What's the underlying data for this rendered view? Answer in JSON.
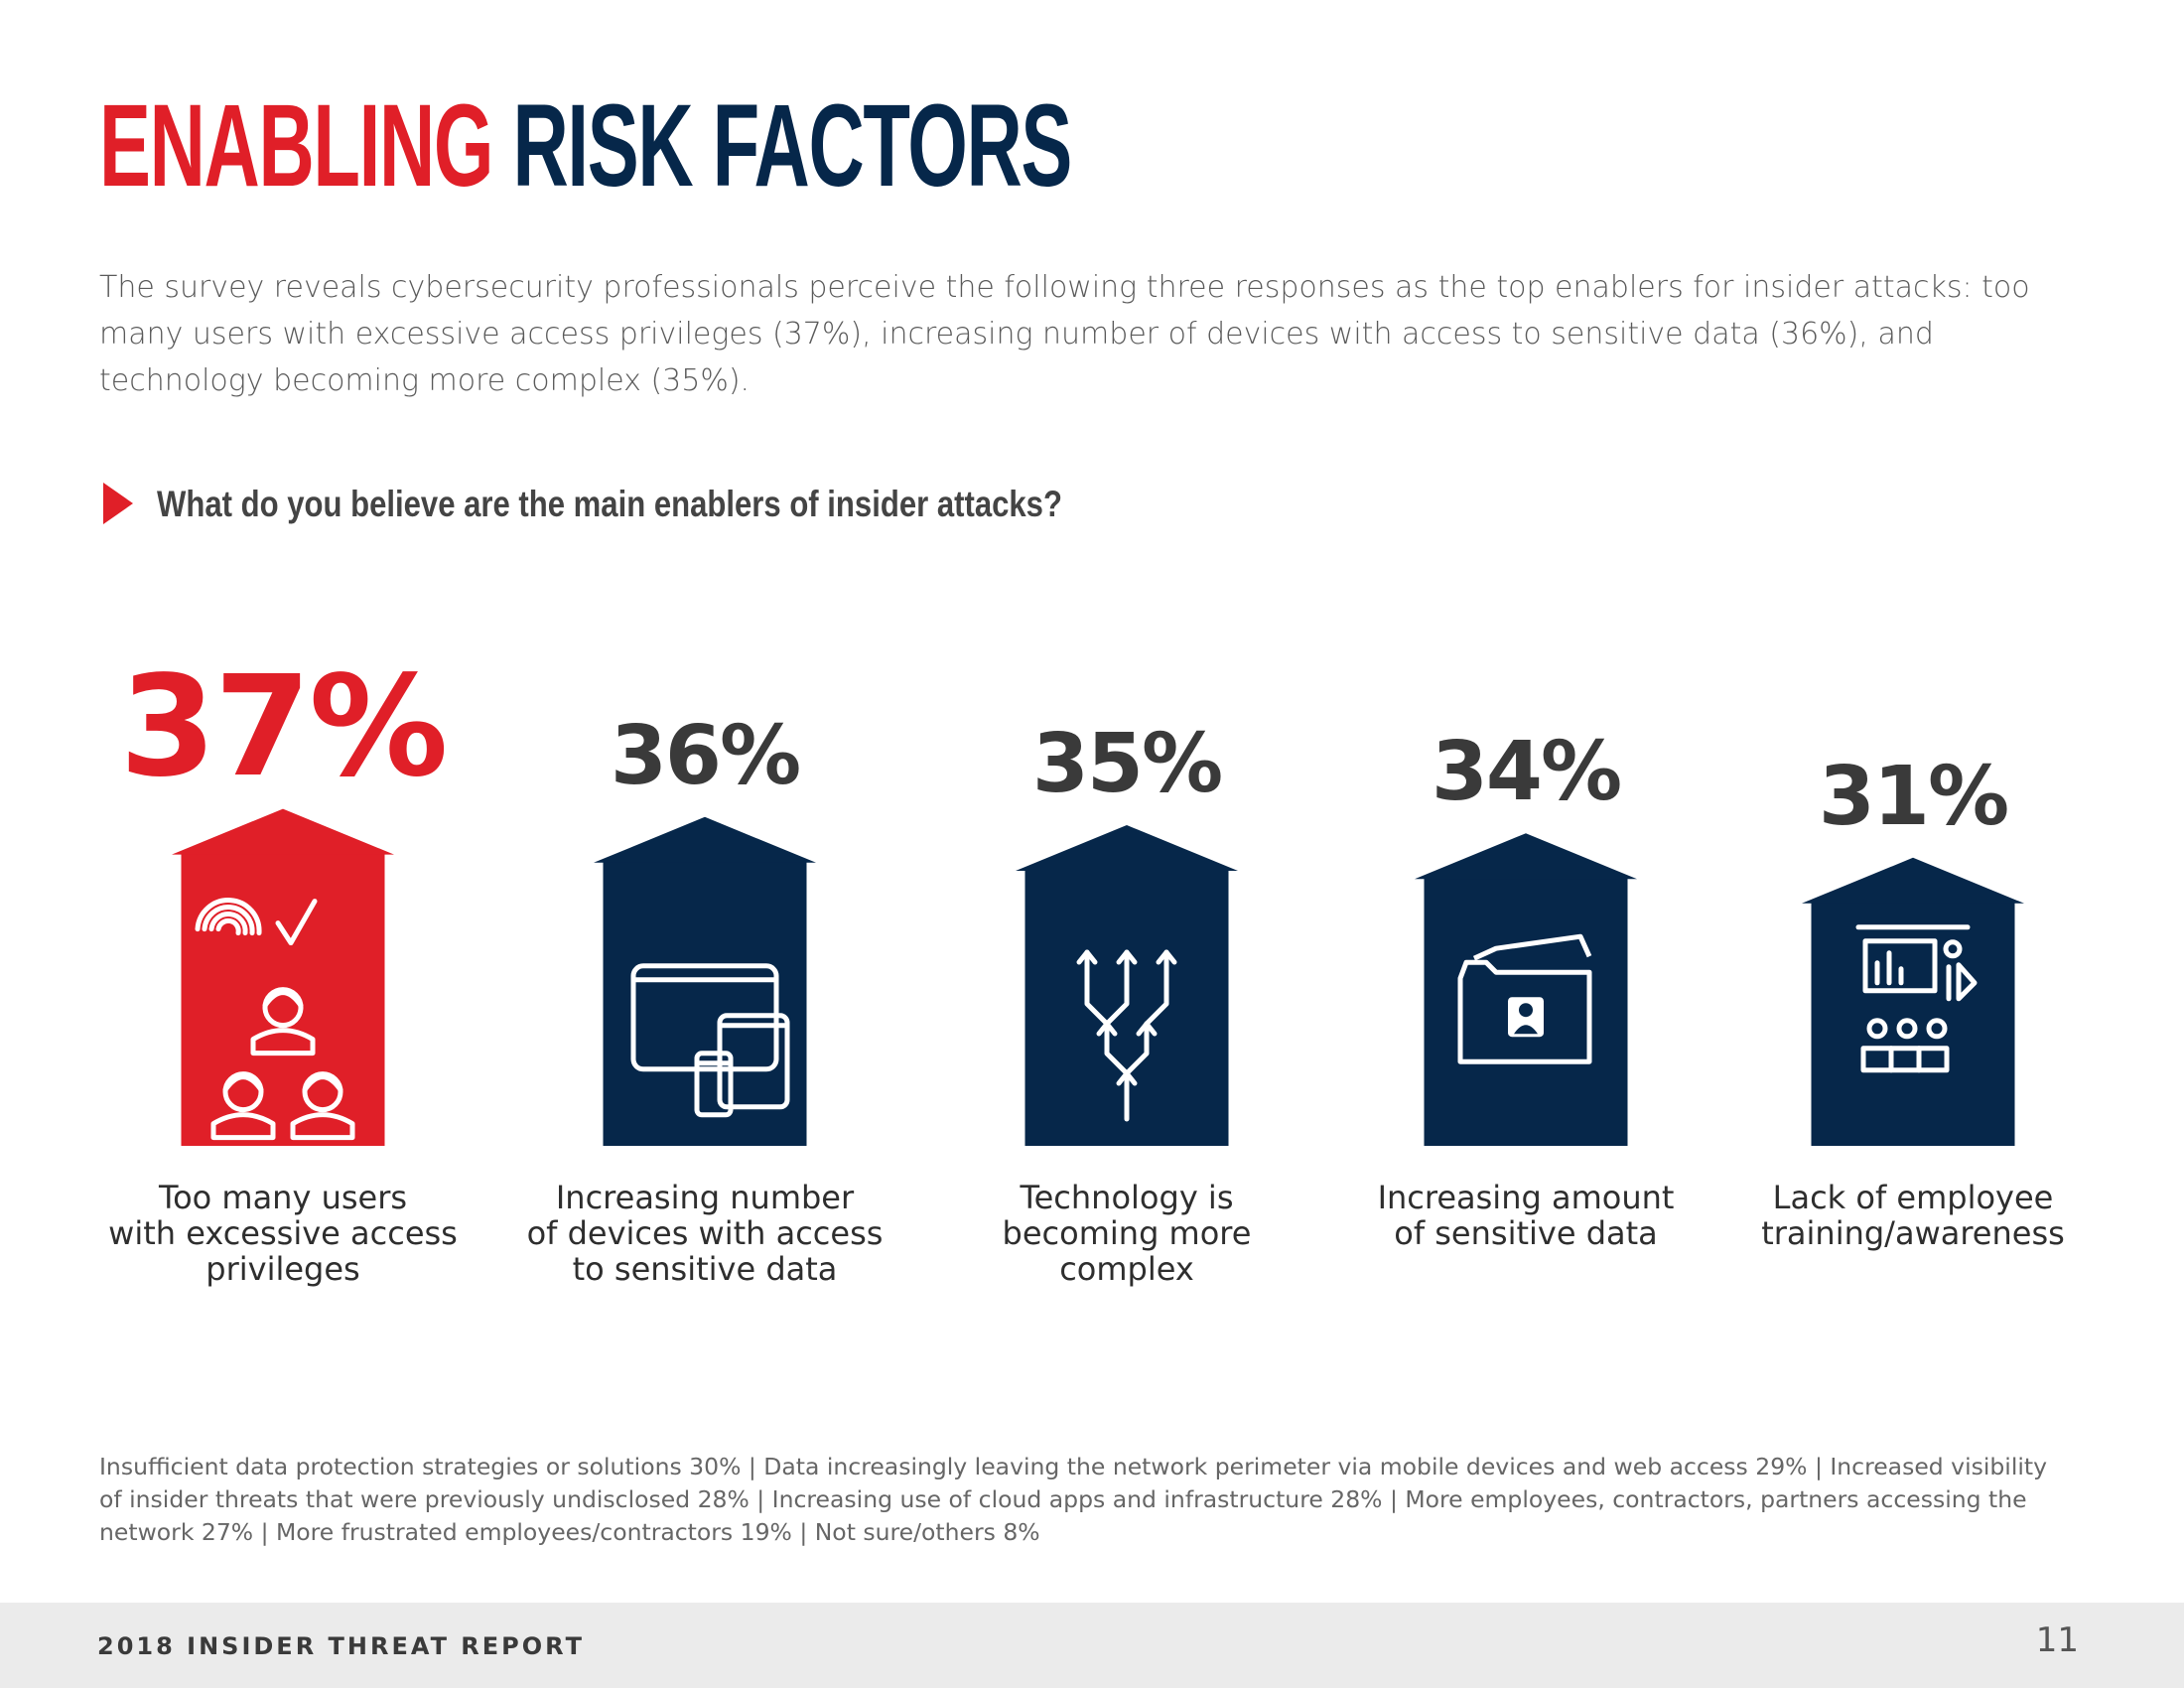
{
  "page": {
    "title_part1": "ENABLING",
    "title_part2": "RISK FACTORS",
    "intro": "The survey reveals cybersecurity professionals perceive the following three responses as the top enablers for insider attacks: too many users with excessive access privileges (37%), increasing number of devices with access to sensitive data (36%), and technology becoming more complex (35%).",
    "question": "What do you believe are the main enablers of insider attacks?",
    "other_responses": "Insufficient data protection strategies or solutions 30%  |  Data increasingly leaving the network perimeter via mobile devices and web access 29%  |  Increased visibility of insider threats that were previously undisclosed 28%  |  Increasing use of cloud apps and infrastructure 28%  |  More employees, contractors, partners accessing the network 27%  |  More frustrated employees/contractors 19%  |  Not sure/others 8%",
    "footer_report": "2018 INSIDER THREAT REPORT",
    "footer_page": "11"
  },
  "colors": {
    "highlight": "#e01f28",
    "bar": "#06274a",
    "text_dark": "#3a3a3a",
    "footer_bg": "#ebebeb"
  },
  "chart_data": {
    "type": "bar",
    "title": "What do you believe are the main enablers of insider attacks?",
    "categories": [
      "Too many users with excessive access privileges",
      "Increasing number of devices with access to sensitive data",
      "Technology is becoming more complex",
      "Increasing amount of sensitive data",
      "Lack of employee training/awareness"
    ],
    "category_lines": [
      [
        "Too many users",
        "with excessive access",
        "privileges"
      ],
      [
        "Increasing number",
        "of devices with access",
        "to sensitive data"
      ],
      [
        "Technology is",
        "becoming more",
        "complex"
      ],
      [
        "Increasing amount",
        "of sensitive data"
      ],
      [
        "Lack of employee",
        "training/awareness"
      ]
    ],
    "values": [
      37,
      36,
      35,
      34,
      31
    ],
    "value_labels": [
      "37%",
      "36%",
      "35%",
      "34%",
      "31%"
    ],
    "unit": "%",
    "highlight_index": 0,
    "icons": [
      "fingerprint-users-icon",
      "devices-icon",
      "branching-arrows-icon",
      "secure-folder-icon",
      "training-presentation-icon"
    ],
    "xlabel": "",
    "ylabel": "",
    "grid": false,
    "legend": "none"
  }
}
